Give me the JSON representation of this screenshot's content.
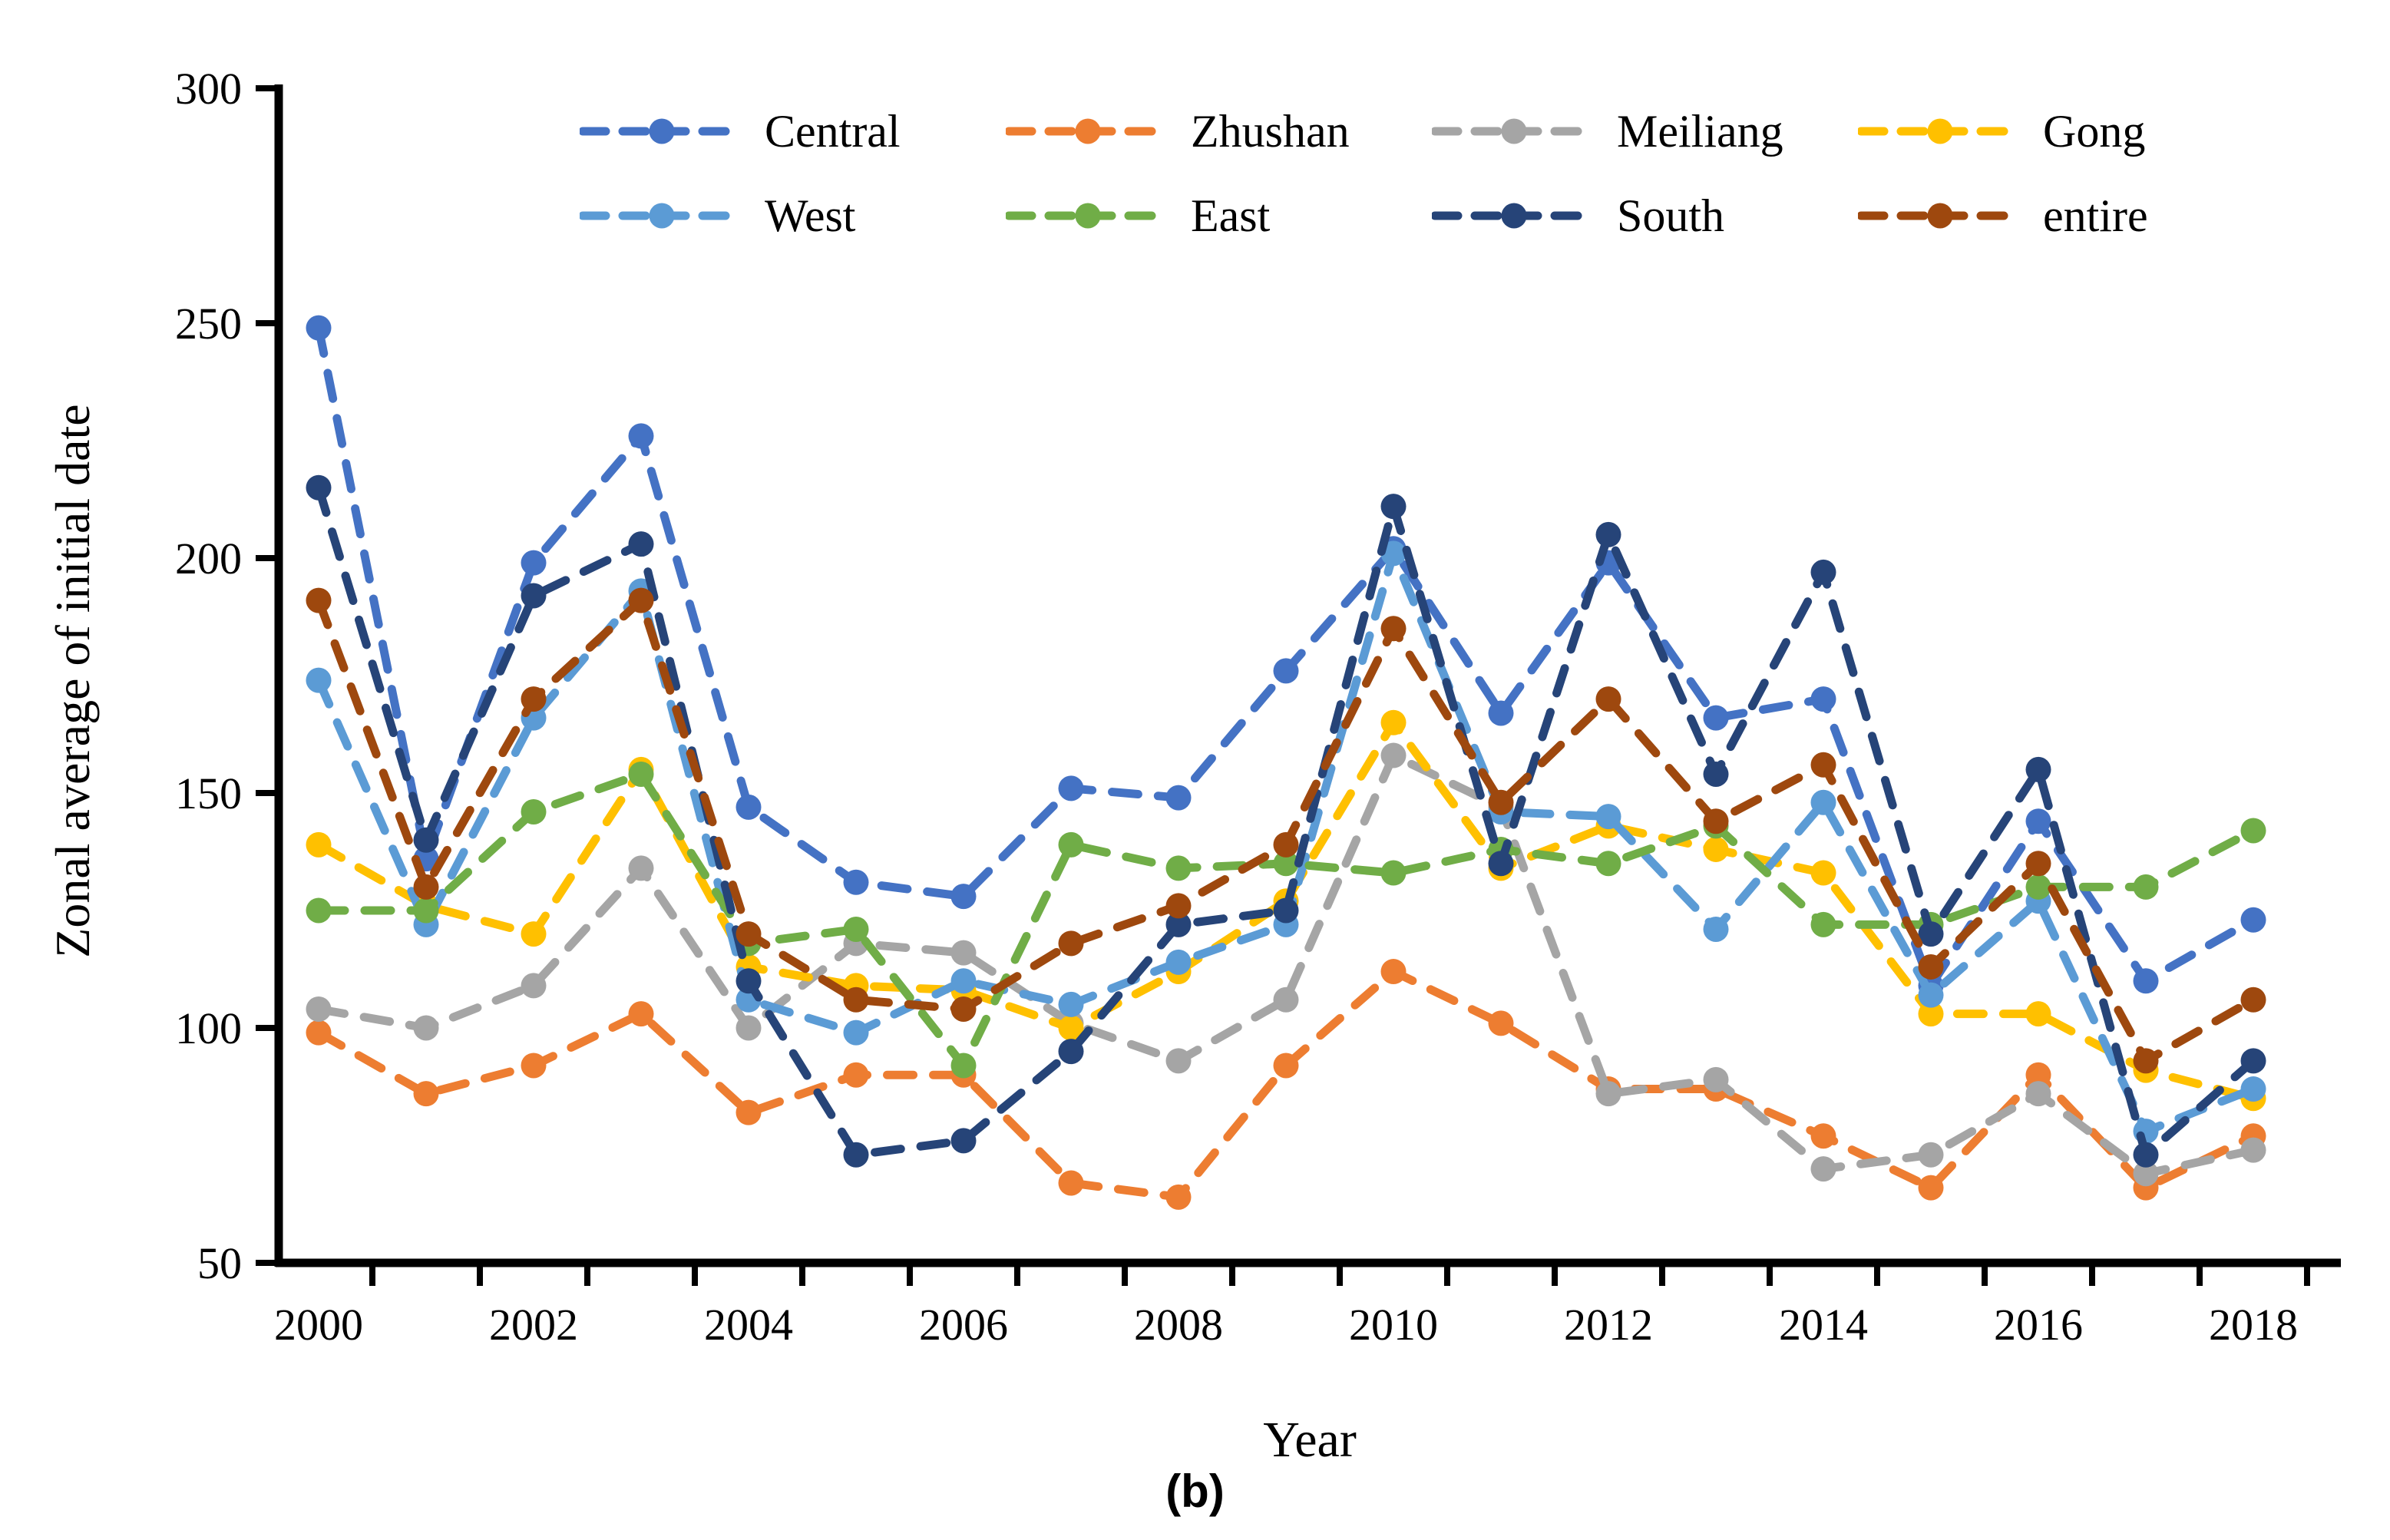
{
  "figure": {
    "ylabel": "Zonal average of initial date",
    "xlabel": "Year",
    "caption": "(b)"
  },
  "chart_data": {
    "type": "line",
    "title": "",
    "xlabel": "Year",
    "ylabel": "Zonal average of initial date",
    "caption": "(b)",
    "x": [
      2000,
      2001,
      2002,
      2003,
      2004,
      2005,
      2006,
      2007,
      2008,
      2009,
      2010,
      2011,
      2012,
      2013,
      2014,
      2015,
      2016,
      2017,
      2018
    ],
    "x_tick_labels": [
      "2000",
      "2002",
      "2004",
      "2006",
      "2008",
      "2010",
      "2012",
      "2014",
      "2016",
      "2018"
    ],
    "ylim": [
      50,
      300
    ],
    "yticks": [
      50,
      100,
      150,
      200,
      250,
      300
    ],
    "grid": false,
    "line_style": "dashed",
    "marker": "circle",
    "legend_position": "top",
    "legend_rows": [
      [
        "Central",
        "Zhushan",
        "Meiliang",
        "Gong"
      ],
      [
        "West",
        "East",
        "South",
        "entire"
      ]
    ],
    "axis_color": "#000000",
    "series": [
      {
        "name": "Central",
        "color": "#4472C4",
        "values": [
          249,
          136,
          199,
          226,
          147,
          131,
          128,
          151,
          149,
          176,
          202,
          167,
          199,
          166,
          170,
          109,
          144,
          110,
          123
        ]
      },
      {
        "name": "Zhushan",
        "color": "#ED7D31",
        "values": [
          99,
          86,
          92,
          103,
          82,
          90,
          90,
          67,
          64,
          92,
          112,
          101,
          87,
          87,
          77,
          66,
          90,
          66,
          77
        ]
      },
      {
        "name": "Meiliang",
        "color": "#A5A5A5",
        "values": [
          104,
          100,
          109,
          134,
          100,
          118,
          116,
          101,
          93,
          106,
          158,
          147,
          86,
          89,
          70,
          73,
          86,
          69,
          74
        ]
      },
      {
        "name": "Gong",
        "color": "#FFC000",
        "values": [
          139,
          126,
          120,
          155,
          113,
          109,
          108,
          100,
          112,
          127,
          165,
          134,
          143,
          138,
          133,
          103,
          103,
          91,
          85
        ]
      },
      {
        "name": "West",
        "color": "#5B9BD5",
        "values": [
          174,
          122,
          166,
          193,
          106,
          99,
          110,
          105,
          114,
          122,
          201,
          146,
          145,
          121,
          148,
          107,
          127,
          78,
          87
        ]
      },
      {
        "name": "East",
        "color": "#70AD47",
        "values": [
          125,
          125,
          146,
          154,
          118,
          121,
          92,
          139,
          134,
          135,
          133,
          138,
          135,
          143,
          122,
          122,
          130,
          130,
          142
        ]
      },
      {
        "name": "South",
        "color": "#264478",
        "values": [
          215,
          140,
          192,
          203,
          110,
          73,
          76,
          95,
          122,
          125,
          211,
          135,
          205,
          154,
          197,
          120,
          155,
          73,
          93
        ]
      },
      {
        "name": "entire",
        "color": "#9E480E",
        "values": [
          191,
          130,
          170,
          191,
          120,
          106,
          104,
          118,
          126,
          139,
          185,
          148,
          170,
          144,
          156,
          113,
          135,
          93,
          106
        ]
      }
    ]
  }
}
